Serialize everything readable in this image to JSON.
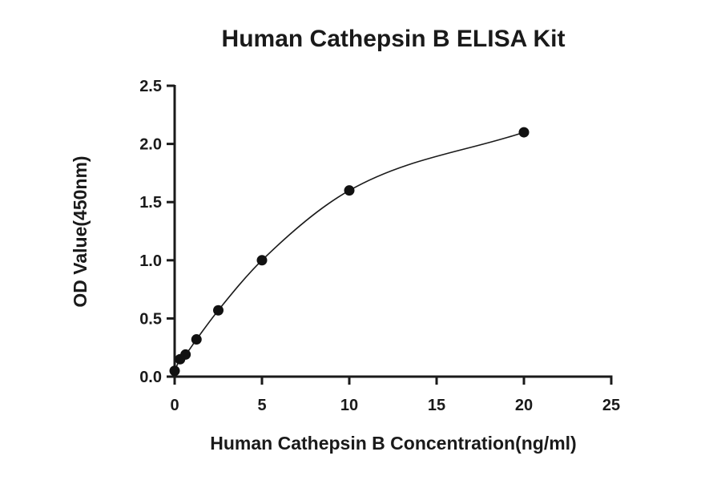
{
  "chart_data": {
    "type": "scatter",
    "title": "Human Cathepsin B  ELISA Kit",
    "xlabel": "Human Cathepsin B Concentration(ng/ml)",
    "ylabel": "OD Value(450nm)",
    "xlim": [
      0,
      25
    ],
    "ylim": [
      0,
      2.5
    ],
    "x_ticks": [
      0,
      5,
      10,
      15,
      20,
      25
    ],
    "y_ticks": [
      0.0,
      0.5,
      1.0,
      1.5,
      2.0,
      2.5
    ],
    "x_tick_labels": [
      "0",
      "5",
      "10",
      "15",
      "20",
      "25"
    ],
    "y_tick_labels": [
      "0.0",
      "0.5",
      "1.0",
      "1.5",
      "2.0",
      "2.5"
    ],
    "grid": false,
    "legend": "none",
    "series": [
      {
        "x": [
          0,
          0.3125,
          0.625,
          1.25,
          2.5,
          5,
          10,
          20
        ],
        "y": [
          0.05,
          0.15,
          0.19,
          0.32,
          0.57,
          1.0,
          1.6,
          2.1
        ]
      }
    ],
    "fit_curve": true,
    "color": "#111111"
  }
}
